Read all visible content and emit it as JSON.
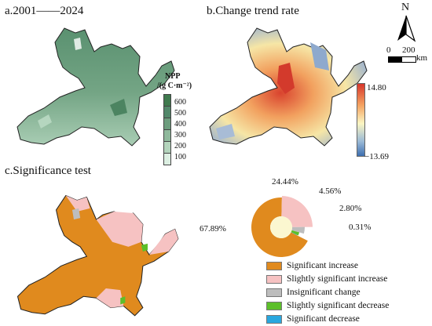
{
  "panels": {
    "a": {
      "title": "a.2001——2024"
    },
    "b": {
      "title": "b.Change trend rate"
    },
    "c": {
      "title": "c.Significance test"
    }
  },
  "npp_legend": {
    "title_line1": "NPP",
    "title_line2": "/(g C·m⁻²)",
    "ticks": [
      "600",
      "500",
      "400",
      "300",
      "200",
      "100"
    ],
    "colors": [
      "#3f7a4e",
      "#52886a",
      "#6d9d7e",
      "#8fb99c",
      "#b3d4bc",
      "#dcefe2"
    ]
  },
  "trend_legend": {
    "max": "14.80",
    "min": "−13.69",
    "color_top": "#d7362b",
    "color_mid": "#fbf6c3",
    "color_bottom": "#3e6fb0"
  },
  "map_furniture": {
    "north": "N",
    "scale_zero": "0",
    "scale_value": "200",
    "scale_unit": "km"
  },
  "significance": {
    "categories": [
      {
        "label": "Significant increase",
        "percent": "67.89%",
        "color": "#e08a1e"
      },
      {
        "label": "Slightly significant increase",
        "percent": "24.44%",
        "color": "#f6c2c2"
      },
      {
        "label": "Insignificant change",
        "percent": "4.56%",
        "color": "#bdbdbd"
      },
      {
        "label": "Slightly significant decrease",
        "percent": "2.80%",
        "color": "#5cbf2a"
      },
      {
        "label": "Significant decrease",
        "percent": "0.31%",
        "color": "#29a7df"
      }
    ]
  },
  "chart_data": {
    "type": "pie",
    "categories": [
      "Significant increase",
      "Slightly significant increase",
      "Insignificant change",
      "Slightly significant decrease",
      "Significant decrease"
    ],
    "values": [
      67.89,
      24.44,
      4.56,
      2.8,
      0.31
    ]
  }
}
